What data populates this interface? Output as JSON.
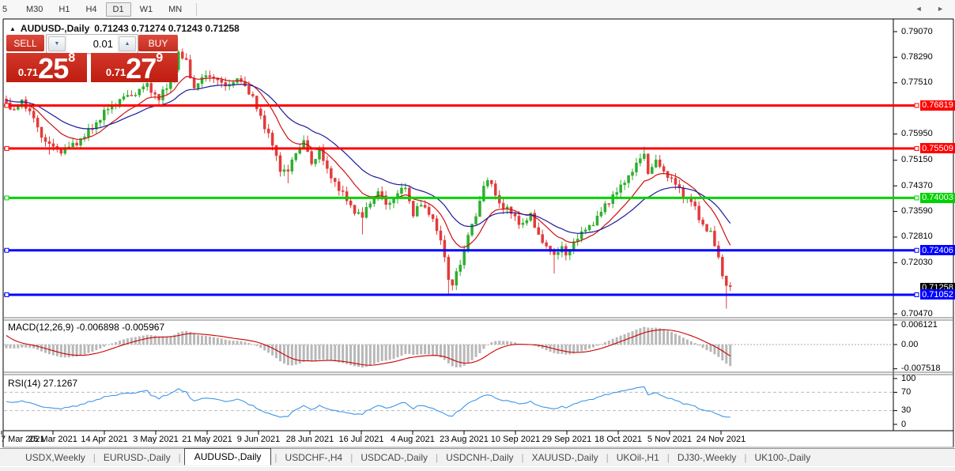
{
  "toolbar": {
    "timeframes": [
      {
        "label": "5",
        "active": false,
        "partial": true
      },
      {
        "label": "M30",
        "active": false
      },
      {
        "label": "H1",
        "active": false
      },
      {
        "label": "H4",
        "active": false
      },
      {
        "label": "D1",
        "active": true
      },
      {
        "label": "W1",
        "active": false
      },
      {
        "label": "MN",
        "active": false
      }
    ]
  },
  "chart_header": {
    "collapse_icon": "▲",
    "symbol_title": "AUDUSD-,Daily",
    "ohlc_text": "0.71243 0.71274 0.71243 0.71258"
  },
  "trade_panel": {
    "sell_label": "SELL",
    "buy_label": "BUY",
    "lot_value": "0.01",
    "spin_down_icon": "▼",
    "spin_up_icon": "▲",
    "sell_price": {
      "small": "0.71",
      "big": "25",
      "sup": "8"
    },
    "buy_price": {
      "small": "0.71",
      "big": "27",
      "sup": "9"
    }
  },
  "price_axis": {
    "ticks": [
      "0.79070",
      "0.78290",
      "0.77510",
      "0.75950",
      "0.75150",
      "0.74370",
      "0.73590",
      "0.72810",
      "0.72030",
      "0.70470"
    ],
    "current_price_label": "0.71258"
  },
  "hlines": [
    {
      "price": 0.76819,
      "label": "0.76819",
      "color": "#ff0000"
    },
    {
      "price": 0.75509,
      "label": "0.75509",
      "color": "#ff0000"
    },
    {
      "price": 0.74003,
      "label": "0.74003",
      "color": "#00d200"
    },
    {
      "price": 0.72406,
      "label": "0.72406",
      "color": "#0000ff"
    },
    {
      "price": 0.71052,
      "label": "0.71052",
      "color": "#0000ff"
    }
  ],
  "date_axis": {
    "labels": [
      "7 Mar 2021",
      "25 Mar 2021",
      "14 Apr 2021",
      "3 May 2021",
      "21 May 2021",
      "9 Jun 2021",
      "28 Jun 2021",
      "16 Jul 2021",
      "4 Aug 2021",
      "23 Aug 2021",
      "10 Sep 2021",
      "29 Sep 2021",
      "18 Oct 2021",
      "5 Nov 2021",
      "24 Nov 2021"
    ]
  },
  "macd_pane": {
    "header": "MACD(12,26,9) -0.006898 -0.005967",
    "axis_labels": [
      "0.006121",
      "0.00",
      "-0.007518"
    ]
  },
  "rsi_pane": {
    "header": "RSI(14) 27.1267",
    "axis_labels": [
      "100",
      "70",
      "30",
      "0"
    ]
  },
  "tab_bar": {
    "tabs": [
      "USDX,Weekly",
      "EURUSD-,Daily",
      "AUDUSD-,Daily",
      "USDCHF-,H4",
      "USDCAD-,Daily",
      "USDCNH-,Daily",
      "XAUUSD-,Daily",
      "UKOil-,H1",
      "DJ30-,Weekly",
      "UK100-,Daily"
    ],
    "active_index": 2,
    "scroll_left_icon": "◄",
    "scroll_right_icon": "►"
  },
  "colors": {
    "up_candle": "#2fae2f",
    "down_candle": "#e23b3b",
    "ma_fast": "#cc1111",
    "ma_slow": "#1a1a9c",
    "macd_histogram": "#b8b8b8",
    "macd_signal": "#cc0000",
    "rsi_line": "#3d96e8",
    "current_price_bg": "#000000"
  },
  "chart_data": {
    "type": "candlestick",
    "symbol": "AUDUSD",
    "timeframe": "Daily",
    "visible_range": {
      "start": "7 Mar 2021",
      "end": "24 Nov 2021"
    },
    "price_axis_range": [
      0.7047,
      0.7907
    ],
    "candle_count": 186,
    "last_ohlc": {
      "open": 0.71243,
      "high": 0.71274,
      "low": 0.71243,
      "close": 0.71258
    },
    "horizontal_levels": [
      0.76819,
      0.75509,
      0.74003,
      0.72406,
      0.71052
    ],
    "indicators": [
      {
        "name": "MACD",
        "params": [
          12,
          26,
          9
        ],
        "last_values": [
          -0.006898,
          -0.005967
        ],
        "axis_range": [
          -0.007518,
          0.006121
        ]
      },
      {
        "name": "RSI",
        "params": [
          14
        ],
        "last_value": 27.1267,
        "levels": [
          70,
          30
        ],
        "axis_range": [
          0,
          100
        ]
      },
      {
        "name": "MA-fast",
        "color": "red"
      },
      {
        "name": "MA-slow",
        "color": "blue"
      }
    ],
    "close_anchors": [
      [
        0,
        0.769
      ],
      [
        2,
        0.766
      ],
      [
        4,
        0.77
      ],
      [
        7,
        0.764
      ],
      [
        9,
        0.759
      ],
      [
        11,
        0.756
      ],
      [
        14,
        0.7545
      ],
      [
        17,
        0.756
      ],
      [
        21,
        0.76
      ],
      [
        25,
        0.766
      ],
      [
        29,
        0.77
      ],
      [
        33,
        0.772
      ],
      [
        36,
        0.7745
      ],
      [
        39,
        0.77
      ],
      [
        42,
        0.776
      ],
      [
        44,
        0.7835
      ],
      [
        46,
        0.782
      ],
      [
        48,
        0.773
      ],
      [
        51,
        0.778
      ],
      [
        54,
        0.7755
      ],
      [
        57,
        0.7745
      ],
      [
        60,
        0.7762
      ],
      [
        63,
        0.77
      ],
      [
        65,
        0.765
      ],
      [
        68,
        0.756
      ],
      [
        70,
        0.749
      ],
      [
        72,
        0.748
      ],
      [
        74,
        0.754
      ],
      [
        76,
        0.7575
      ],
      [
        78,
        0.75
      ],
      [
        80,
        0.755
      ],
      [
        82,
        0.748
      ],
      [
        84,
        0.745
      ],
      [
        86,
        0.741
      ],
      [
        88,
        0.7375
      ],
      [
        91,
        0.734
      ],
      [
        93,
        0.739
      ],
      [
        95,
        0.742
      ],
      [
        97,
        0.738
      ],
      [
        99,
        0.74
      ],
      [
        102,
        0.7435
      ],
      [
        104,
        0.735
      ],
      [
        106,
        0.738
      ],
      [
        108,
        0.736
      ],
      [
        110,
        0.73
      ],
      [
        112,
        0.723
      ],
      [
        113,
        0.715
      ],
      [
        114,
        0.7135
      ],
      [
        116,
        0.72
      ],
      [
        118,
        0.729
      ],
      [
        120,
        0.734
      ],
      [
        121,
        0.7395
      ],
      [
        122,
        0.744
      ],
      [
        123,
        0.7455
      ],
      [
        124,
        0.7435
      ],
      [
        126,
        0.7385
      ],
      [
        128,
        0.7365
      ],
      [
        130,
        0.734
      ],
      [
        132,
        0.732
      ],
      [
        134,
        0.7345
      ],
      [
        136,
        0.729
      ],
      [
        138,
        0.7245
      ],
      [
        140,
        0.723
      ],
      [
        142,
        0.725
      ],
      [
        143,
        0.722
      ],
      [
        145,
        0.727
      ],
      [
        147,
        0.729
      ],
      [
        149,
        0.7315
      ],
      [
        151,
        0.734
      ],
      [
        153,
        0.7375
      ],
      [
        155,
        0.741
      ],
      [
        157,
        0.743
      ],
      [
        159,
        0.747
      ],
      [
        161,
        0.75
      ],
      [
        163,
        0.7535
      ],
      [
        164,
        0.748
      ],
      [
        166,
        0.751
      ],
      [
        167,
        0.7495
      ],
      [
        169,
        0.747
      ],
      [
        171,
        0.744
      ],
      [
        173,
        0.741
      ],
      [
        175,
        0.739
      ],
      [
        177,
        0.734
      ],
      [
        178,
        0.732
      ],
      [
        180,
        0.729
      ],
      [
        181,
        0.7255
      ],
      [
        182,
        0.722
      ],
      [
        183,
        0.717
      ],
      [
        184,
        0.713
      ],
      [
        185,
        0.7126
      ]
    ],
    "wick_overrides": {
      "11": {
        "low": 0.7532
      },
      "44": {
        "high": 0.7852
      },
      "72": {
        "low": 0.7445
      },
      "91": {
        "low": 0.7289
      },
      "113": {
        "low": 0.7106
      },
      "140": {
        "low": 0.717
      },
      "163": {
        "high": 0.7556
      },
      "184": {
        "low": 0.7063
      }
    }
  }
}
